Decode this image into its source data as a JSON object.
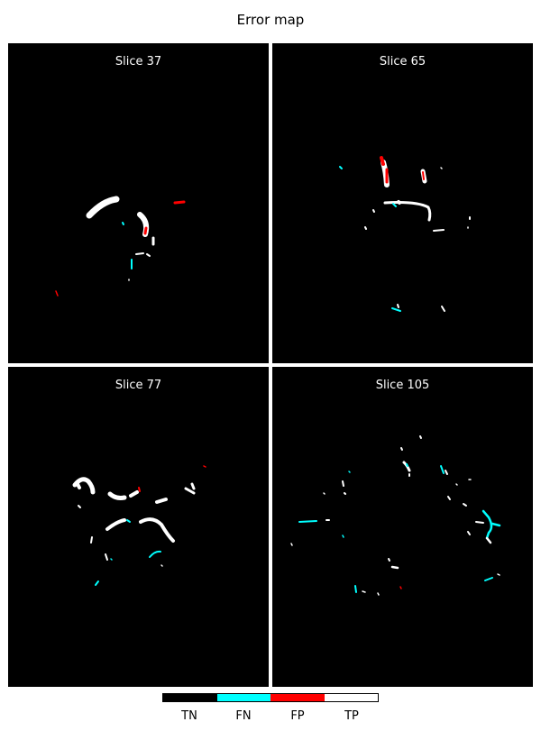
{
  "title": "Error map",
  "colors": {
    "TN": "#000000",
    "FN": "#00ffff",
    "FP": "#ff0000",
    "TP": "#ffffff"
  },
  "panels": [
    {
      "label": "Slice 37"
    },
    {
      "label": "Slice 65"
    },
    {
      "label": "Slice 77"
    },
    {
      "label": "Slice 105"
    }
  ],
  "legend": [
    {
      "label": "TN",
      "color": "#000000"
    },
    {
      "label": "FN",
      "color": "#00ffff"
    },
    {
      "label": "FP",
      "color": "#ff0000"
    },
    {
      "label": "TP",
      "color": "#ffffff"
    }
  ]
}
